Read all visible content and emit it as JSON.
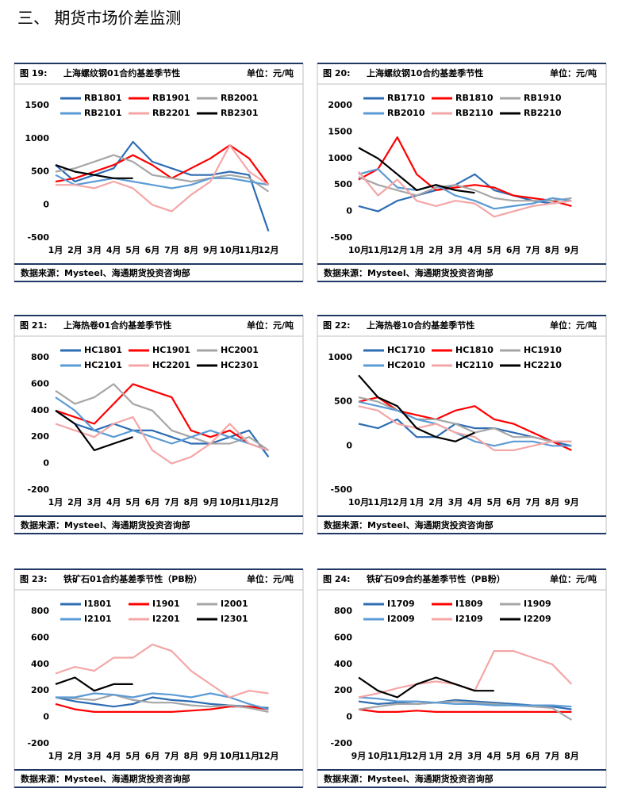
{
  "heading": "三、 期货市场价差监测",
  "chart_data": [
    {
      "type": "line",
      "figure": "图 19:",
      "title": "上海螺纹钢01合约基差季节性",
      "unit": "单位：元/吨",
      "source": "数据来源：Mysteel、海通期货投资咨询部",
      "categories": [
        "1月",
        "2月",
        "3月",
        "4月",
        "5月",
        "6月",
        "7月",
        "8月",
        "9月",
        "10月",
        "11月",
        "12月"
      ],
      "ylim": [
        -500,
        1500
      ],
      "yticks": [
        -500,
        0,
        500,
        1000,
        1500
      ],
      "series": [
        {
          "name": "RB1801",
          "color": "#2e6db4",
          "values": [
            600,
            350,
            450,
            550,
            950,
            650,
            550,
            450,
            450,
            500,
            450,
            -400
          ]
        },
        {
          "name": "RB1901",
          "color": "#ff0000",
          "values": [
            350,
            400,
            500,
            600,
            750,
            600,
            400,
            550,
            700,
            900,
            700,
            300
          ]
        },
        {
          "name": "RB2001",
          "color": "#a6a6a6",
          "values": [
            500,
            550,
            650,
            750,
            650,
            450,
            400,
            350,
            400,
            450,
            400,
            200
          ]
        },
        {
          "name": "RB2101",
          "color": "#5b9bd5",
          "values": [
            450,
            300,
            350,
            400,
            350,
            300,
            250,
            300,
            400,
            400,
            350,
            300
          ]
        },
        {
          "name": "RB2201",
          "color": "#f4a6a6",
          "values": [
            300,
            300,
            250,
            350,
            250,
            0,
            -100,
            150,
            350,
            900,
            500,
            300
          ]
        },
        {
          "name": "RB2301",
          "color": "#000000",
          "values": [
            600,
            500,
            450,
            400,
            400,
            null,
            null,
            null,
            null,
            null,
            null,
            null
          ]
        }
      ]
    },
    {
      "type": "line",
      "figure": "图 20:",
      "title": "上海螺纹钢10合约基差季节性",
      "unit": "单位：元/吨",
      "source": "数据来源：Mysteel、海通期货投资咨询部",
      "categories": [
        "10月",
        "11月",
        "12月",
        "1月",
        "2月",
        "3月",
        "4月",
        "5月",
        "6月",
        "7月",
        "8月",
        "9月"
      ],
      "ylim": [
        -500,
        2000
      ],
      "yticks": [
        -500,
        0,
        500,
        1000,
        1500,
        2000
      ],
      "series": [
        {
          "name": "RB1710",
          "color": "#2e6db4",
          "values": [
            100,
            0,
            200,
            300,
            400,
            500,
            700,
            400,
            300,
            200,
            150,
            200
          ]
        },
        {
          "name": "RB1810",
          "color": "#ff0000",
          "values": [
            600,
            800,
            1400,
            700,
            400,
            450,
            500,
            450,
            300,
            250,
            200,
            100
          ]
        },
        {
          "name": "RB1910",
          "color": "#a6a6a6",
          "values": [
            650,
            500,
            400,
            300,
            450,
            500,
            400,
            250,
            200,
            200,
            200,
            250
          ]
        },
        {
          "name": "RB2010",
          "color": "#5b9bd5",
          "values": [
            700,
            800,
            450,
            400,
            500,
            300,
            200,
            50,
            100,
            150,
            250,
            200
          ]
        },
        {
          "name": "RB2110",
          "color": "#f4a6a6",
          "values": [
            750,
            300,
            600,
            200,
            100,
            200,
            150,
            -100,
            0,
            100,
            150,
            200
          ]
        },
        {
          "name": "RB2210",
          "color": "#000000",
          "values": [
            1200,
            1000,
            700,
            400,
            500,
            400,
            350,
            null,
            null,
            null,
            null,
            null
          ]
        }
      ]
    },
    {
      "type": "line",
      "figure": "图 21:",
      "title": "上海热卷01合约基差季节性",
      "unit": "单位：元/吨",
      "source": "数据来源：Mysteel、海通期货投资咨询部",
      "categories": [
        "1月",
        "2月",
        "3月",
        "4月",
        "5月",
        "6月",
        "7月",
        "8月",
        "9月",
        "10月",
        "11月",
        "12月"
      ],
      "ylim": [
        -200,
        800
      ],
      "yticks": [
        -200,
        0,
        200,
        400,
        600,
        800
      ],
      "series": [
        {
          "name": "HC1801",
          "color": "#2e6db4",
          "values": [
            400,
            300,
            250,
            300,
            250,
            250,
            200,
            150,
            150,
            200,
            250,
            50
          ]
        },
        {
          "name": "HC1901",
          "color": "#ff0000",
          "values": [
            400,
            350,
            300,
            450,
            600,
            550,
            500,
            250,
            200,
            250,
            150,
            100
          ]
        },
        {
          "name": "HC2001",
          "color": "#a6a6a6",
          "values": [
            550,
            450,
            500,
            600,
            450,
            400,
            250,
            200,
            150,
            150,
            200,
            100
          ]
        },
        {
          "name": "HC2101",
          "color": "#5b9bd5",
          "values": [
            500,
            400,
            250,
            200,
            250,
            200,
            150,
            200,
            250,
            200,
            150,
            100
          ]
        },
        {
          "name": "HC2201",
          "color": "#f4a6a6",
          "values": [
            300,
            250,
            200,
            300,
            350,
            100,
            0,
            50,
            150,
            300,
            150,
            100
          ]
        },
        {
          "name": "HC2301",
          "color": "#000000",
          "values": [
            400,
            300,
            100,
            150,
            200,
            null,
            null,
            null,
            null,
            null,
            null,
            null
          ]
        }
      ]
    },
    {
      "type": "line",
      "figure": "图 22:",
      "title": "上海热卷10合约基差季节性",
      "unit": "单位：元/吨",
      "source": "数据来源：Mysteel、海通期货投资咨询部",
      "categories": [
        "10月",
        "11月",
        "12月",
        "1月",
        "2月",
        "3月",
        "4月",
        "5月",
        "6月",
        "7月",
        "8月",
        "9月"
      ],
      "ylim": [
        -500,
        1000
      ],
      "yticks": [
        -500,
        0,
        500,
        1000
      ],
      "series": [
        {
          "name": "HC1710",
          "color": "#2e6db4",
          "values": [
            250,
            200,
            300,
            100,
            100,
            250,
            200,
            200,
            150,
            100,
            50,
            0
          ]
        },
        {
          "name": "HC1810",
          "color": "#ff0000",
          "values": [
            500,
            550,
            400,
            350,
            300,
            400,
            450,
            300,
            250,
            150,
            50,
            -50
          ]
        },
        {
          "name": "HC1910",
          "color": "#a6a6a6",
          "values": [
            550,
            500,
            400,
            300,
            300,
            250,
            150,
            200,
            100,
            100,
            50,
            50
          ]
        },
        {
          "name": "HC2010",
          "color": "#5b9bd5",
          "values": [
            500,
            450,
            400,
            300,
            250,
            150,
            50,
            0,
            50,
            50,
            0,
            0
          ]
        },
        {
          "name": "HC2110",
          "color": "#f4a6a6",
          "values": [
            450,
            400,
            250,
            200,
            250,
            150,
            100,
            -50,
            -50,
            0,
            50,
            50
          ]
        },
        {
          "name": "HC2210",
          "color": "#000000",
          "values": [
            800,
            550,
            450,
            200,
            100,
            50,
            150,
            null,
            null,
            null,
            null,
            null
          ]
        }
      ]
    },
    {
      "type": "line",
      "figure": "图 23:",
      "title": "铁矿石01合约基差季节性（PB粉）",
      "unit": "单位：元/吨",
      "source": "数据来源：Mysteel、海通期货投资咨询部",
      "categories": [
        "1月",
        "2月",
        "3月",
        "4月",
        "5月",
        "6月",
        "7月",
        "8月",
        "9月",
        "10月",
        "11月",
        "12月"
      ],
      "ylim": [
        -200,
        800
      ],
      "yticks": [
        -200,
        0,
        200,
        400,
        600,
        800
      ],
      "series": [
        {
          "name": "I1801",
          "color": "#2e6db4",
          "values": [
            150,
            120,
            100,
            80,
            100,
            150,
            130,
            120,
            100,
            90,
            80,
            70
          ]
        },
        {
          "name": "I1901",
          "color": "#ff0000",
          "values": [
            100,
            60,
            40,
            40,
            40,
            40,
            40,
            50,
            60,
            80,
            80,
            60
          ]
        },
        {
          "name": "I2001",
          "color": "#a6a6a6",
          "values": [
            150,
            140,
            130,
            170,
            130,
            110,
            110,
            90,
            80,
            90,
            70,
            40
          ]
        },
        {
          "name": "I2101",
          "color": "#5b9bd5",
          "values": [
            150,
            150,
            180,
            170,
            150,
            180,
            170,
            150,
            180,
            150,
            100,
            60
          ]
        },
        {
          "name": "I2201",
          "color": "#f4a6a6",
          "values": [
            330,
            380,
            350,
            450,
            450,
            550,
            500,
            350,
            250,
            150,
            200,
            180
          ]
        },
        {
          "name": "I2301",
          "color": "#000000",
          "values": [
            250,
            300,
            200,
            250,
            250,
            null,
            null,
            null,
            null,
            null,
            null,
            null
          ]
        }
      ]
    },
    {
      "type": "line",
      "figure": "图 24:",
      "title": "铁矿石09合约基差季节性（PB粉）",
      "unit": "单位：元/吨",
      "source": "数据来源：Mysteel、海通期货投资咨询部",
      "categories": [
        "9月",
        "10月",
        "11月",
        "12月",
        "1月",
        "2月",
        "3月",
        "4月",
        "5月",
        "6月",
        "7月",
        "8月"
      ],
      "ylim": [
        -200,
        800
      ],
      "yticks": [
        -200,
        0,
        200,
        400,
        600,
        800
      ],
      "series": [
        {
          "name": "I1709",
          "color": "#2e6db4",
          "values": [
            120,
            100,
            110,
            100,
            110,
            130,
            120,
            110,
            100,
            90,
            80,
            60
          ]
        },
        {
          "name": "I1809",
          "color": "#ff0000",
          "values": [
            60,
            40,
            40,
            50,
            40,
            40,
            40,
            40,
            40,
            40,
            40,
            40
          ]
        },
        {
          "name": "I1909",
          "color": "#a6a6a6",
          "values": [
            60,
            80,
            100,
            100,
            110,
            120,
            110,
            100,
            90,
            80,
            70,
            -20
          ]
        },
        {
          "name": "I2009",
          "color": "#5b9bd5",
          "values": [
            150,
            140,
            120,
            120,
            110,
            100,
            100,
            90,
            90,
            90,
            90,
            80
          ]
        },
        {
          "name": "I2109",
          "color": "#f4a6a6",
          "values": [
            150,
            180,
            220,
            250,
            270,
            250,
            200,
            500,
            500,
            450,
            400,
            250
          ]
        },
        {
          "name": "I2209",
          "color": "#000000",
          "values": [
            300,
            200,
            150,
            250,
            300,
            250,
            200,
            200,
            null,
            null,
            null,
            null
          ]
        }
      ]
    }
  ]
}
